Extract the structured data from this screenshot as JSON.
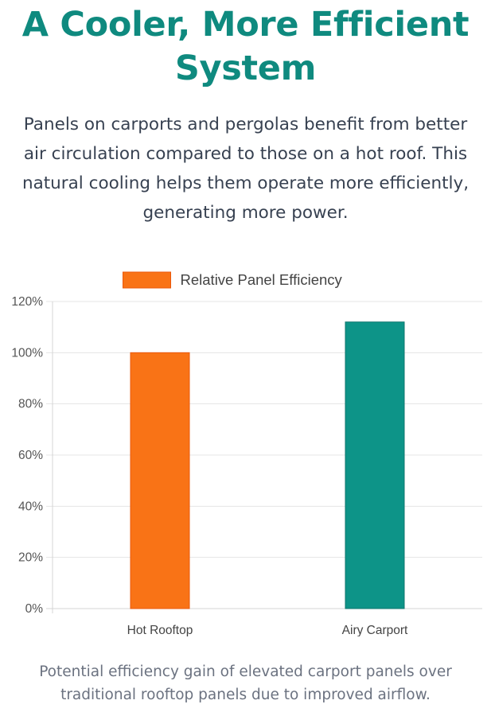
{
  "title_line1": "A Cooler, More Efficient",
  "title_line2": "System",
  "description_lines": [
    "Panels on carports and pergolas benefit from better",
    "air circulation compared to those on a hot roof. This",
    "natural cooling helps them operate more efficiently,",
    "generating more power."
  ],
  "caption_lines": [
    "Potential efficiency gain of elevated carport panels over",
    "traditional rooftop panels due to improved airflow."
  ],
  "colors": {
    "title": "#0f8a7f",
    "bar_hot": "#f97316",
    "bar_airy": "#0d9488"
  },
  "chart_data": {
    "type": "bar",
    "categories": [
      "Hot Rooftop",
      "Airy Carport"
    ],
    "series": [
      {
        "name": "Relative Panel Efficiency",
        "values": [
          100,
          112
        ],
        "colors": [
          "#f97316",
          "#0d9488"
        ],
        "border_colors": [
          "#ea580c",
          "#0f766e"
        ]
      }
    ],
    "ylim": [
      0,
      120
    ],
    "yticks": [
      0,
      20,
      40,
      60,
      80,
      100,
      120
    ],
    "ytick_suffix": "%",
    "legend_position": "top",
    "grid": true
  }
}
